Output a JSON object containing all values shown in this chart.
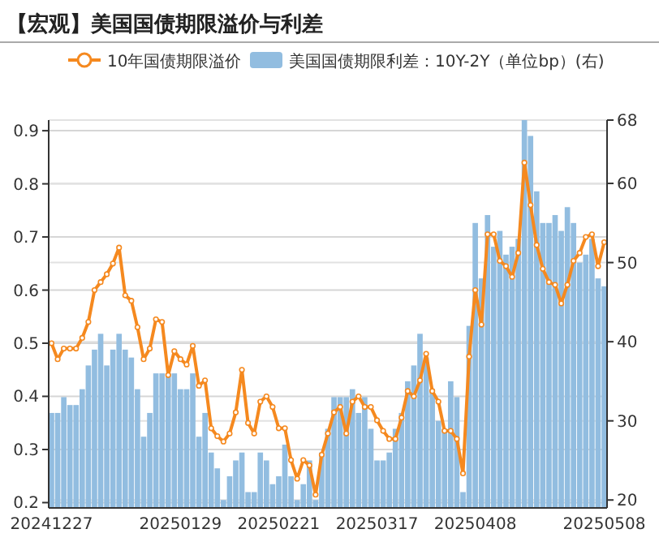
{
  "chart_data": {
    "type": "bar",
    "title": "【宏观】美国国债期限溢价与利差",
    "categories": [
      "20241227",
      null,
      null,
      null,
      null,
      null,
      null,
      null,
      null,
      null,
      null,
      null,
      null,
      null,
      null,
      null,
      null,
      null,
      null,
      null,
      null,
      "20250129",
      null,
      null,
      null,
      null,
      null,
      null,
      null,
      null,
      null,
      null,
      null,
      null,
      null,
      null,
      null,
      "20250221",
      null,
      null,
      null,
      null,
      null,
      null,
      null,
      null,
      null,
      null,
      null,
      null,
      null,
      null,
      null,
      "20250317",
      null,
      null,
      null,
      null,
      null,
      null,
      null,
      null,
      null,
      null,
      null,
      null,
      null,
      null,
      null,
      "20250408",
      null,
      null,
      null,
      null,
      null,
      null,
      null,
      null,
      null,
      null,
      null,
      null,
      null,
      null,
      null,
      null,
      null,
      null,
      null,
      null,
      "20250508"
    ],
    "series": [
      {
        "name": "10年国债期限溢价",
        "type": "line",
        "color": "#f5891f",
        "marker": "circle",
        "values": [
          0.5,
          0.47,
          0.49,
          0.49,
          0.49,
          0.51,
          0.54,
          0.6,
          0.615,
          0.63,
          0.65,
          0.68,
          0.59,
          0.58,
          0.53,
          0.47,
          0.49,
          0.545,
          0.54,
          0.44,
          0.485,
          0.47,
          0.46,
          0.495,
          0.42,
          0.43,
          0.34,
          0.325,
          0.315,
          0.33,
          0.37,
          0.45,
          0.35,
          0.33,
          0.39,
          0.4,
          0.38,
          0.34,
          0.34,
          0.28,
          0.245,
          0.28,
          0.27,
          0.215,
          0.29,
          0.33,
          0.37,
          0.38,
          0.33,
          0.39,
          0.4,
          0.38,
          0.38,
          0.355,
          0.335,
          0.32,
          0.32,
          0.36,
          0.41,
          0.4,
          0.43,
          0.48,
          0.41,
          0.39,
          0.335,
          0.335,
          0.32,
          0.255,
          0.475,
          0.6,
          0.535,
          0.705,
          0.705,
          0.655,
          0.645,
          0.625,
          0.67,
          0.84,
          0.76,
          0.685,
          0.64,
          0.615,
          0.61,
          0.575,
          0.61,
          0.655,
          0.67,
          0.7,
          0.705,
          0.645,
          0.69
        ]
      },
      {
        "name": "美国国债期限利差：10Y-2Y（单位bp）(右)",
        "axis": "y2",
        "color": "#92bde0",
        "values": [
          31,
          31,
          33,
          32,
          32,
          34,
          37,
          39,
          41,
          37,
          39,
          41,
          39,
          38,
          34,
          28,
          31,
          36,
          36,
          36,
          36,
          34,
          34,
          36,
          28,
          31,
          26,
          24,
          20,
          23,
          25,
          26,
          21,
          21,
          26,
          25,
          22,
          23,
          27,
          23,
          20,
          22,
          25,
          20,
          26,
          29,
          33,
          33,
          33,
          34,
          31,
          33,
          29,
          25,
          25,
          26,
          29,
          31,
          35,
          37,
          41,
          38,
          34,
          30,
          29,
          35,
          33,
          21,
          42,
          55,
          48,
          56,
          52,
          54,
          51,
          52,
          53,
          68,
          66,
          59,
          55,
          55,
          56,
          54,
          57,
          55,
          50,
          51,
          53,
          48,
          47
        ]
      }
    ],
    "ylim": [
      0.19,
      0.92
    ],
    "yticks": [
      0.2,
      0.3,
      0.4,
      0.5,
      0.6,
      0.7,
      0.8,
      0.9
    ],
    "y2lim": [
      19,
      68
    ],
    "y2ticks": [
      20,
      30,
      40,
      50,
      60,
      68
    ],
    "grid": true,
    "legend": "top"
  }
}
